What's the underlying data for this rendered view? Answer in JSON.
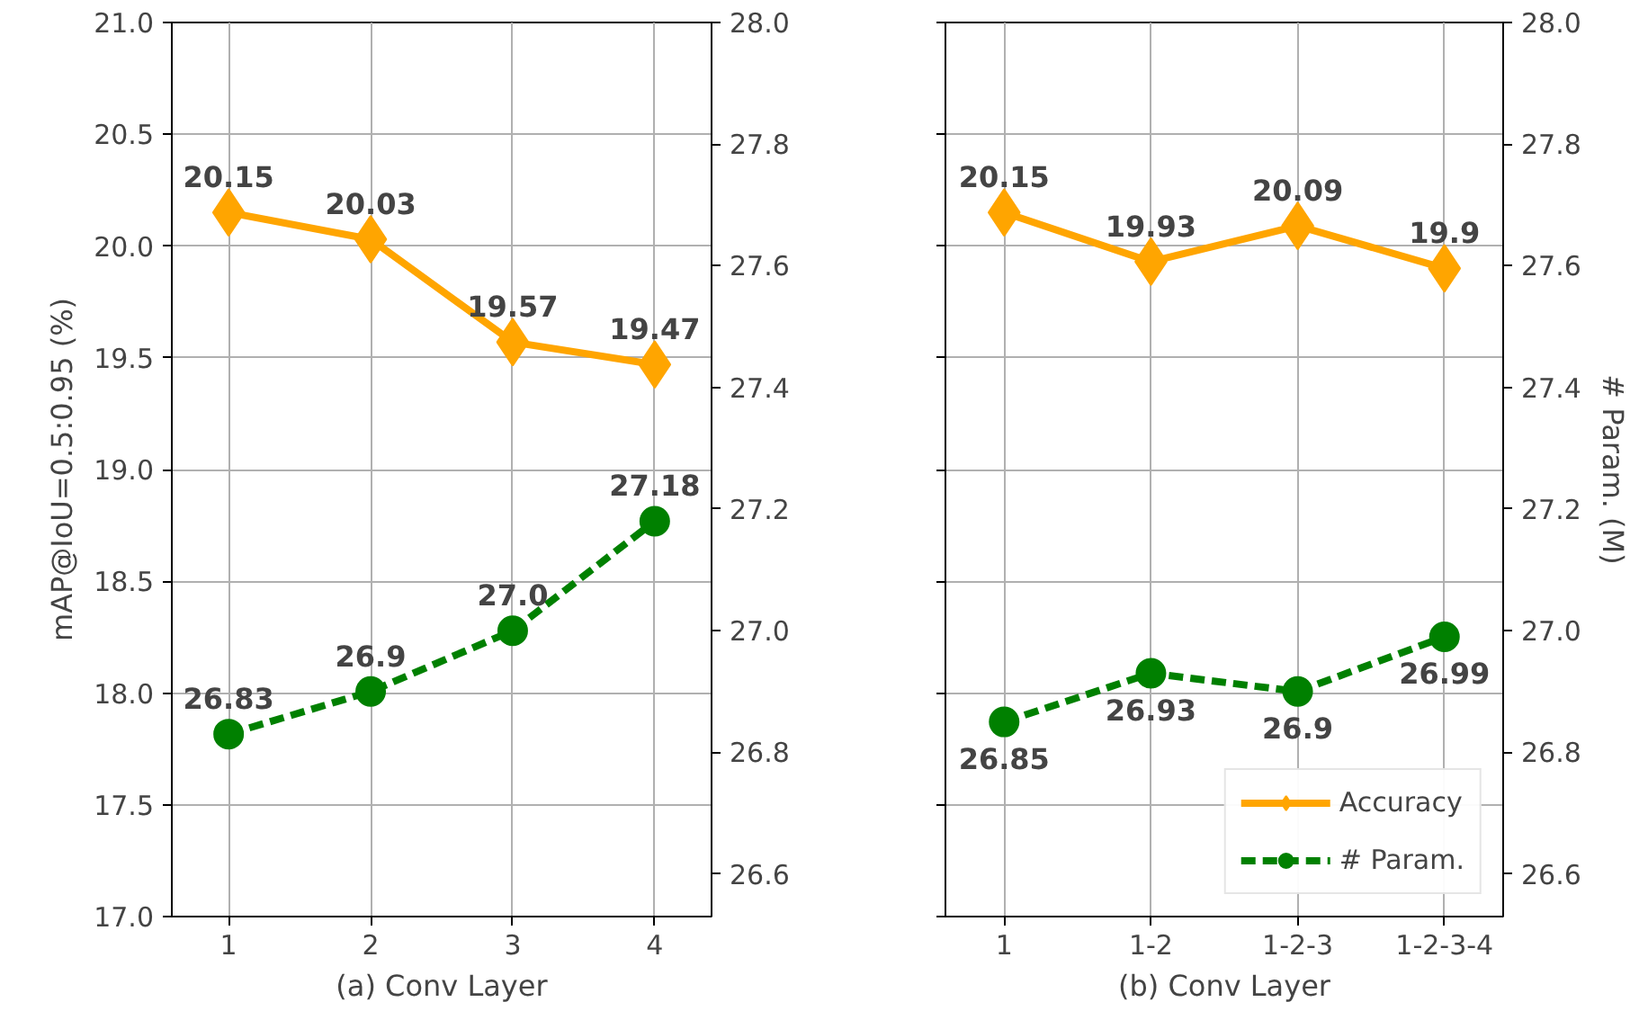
{
  "chart_data": [
    {
      "type": "line",
      "xlabel": "(a) Conv Layer",
      "ylabel": "mAP@IoU=0.5:0.95 (%)",
      "categories": [
        "1",
        "2",
        "3",
        "4"
      ],
      "series": [
        {
          "color": "#ffa500",
          "marker": "diamond",
          "line_style": "solid",
          "values": [
            20.15,
            20.03,
            19.57,
            19.47
          ],
          "value_labels": [
            "20.15",
            "20.03",
            "19.57",
            "19.47"
          ]
        },
        {
          "color": "#008000",
          "marker": "circle",
          "line_style": "dashed",
          "axis": "y2",
          "values": [
            26.83,
            26.9,
            27.0,
            27.18
          ],
          "value_labels": [
            "26.83",
            "26.9",
            "27.0",
            "27.18"
          ]
        }
      ],
      "ylim": [
        17.0,
        21.0
      ],
      "yticks": [
        "17.0",
        "17.5",
        "18.0",
        "18.5",
        "19.0",
        "19.5",
        "20.0",
        "20.5",
        "21.0"
      ],
      "y2lim": [
        26.53,
        28.0
      ],
      "y2ticks": [
        "26.6",
        "26.8",
        "27.0",
        "27.2",
        "27.4",
        "27.6",
        "27.8",
        "28.0"
      ],
      "grid": true,
      "legend": false
    },
    {
      "type": "line",
      "xlabel": "(b) Conv Layer",
      "y2label": "# Param. (M)",
      "categories": [
        "1",
        "1-2",
        "1-2-3",
        "1-2-3-4"
      ],
      "series": [
        {
          "name": "Accuracy",
          "color": "#ffa500",
          "marker": "diamond",
          "line_style": "solid",
          "values": [
            20.15,
            19.93,
            20.09,
            19.9
          ],
          "value_labels": [
            "20.15",
            "19.93",
            "20.09",
            "19.9"
          ]
        },
        {
          "name": "# Param.",
          "color": "#008000",
          "marker": "circle",
          "line_style": "dashed",
          "axis": "y2",
          "values": [
            26.85,
            26.93,
            26.9,
            26.99
          ],
          "value_labels": [
            "26.85",
            "26.93",
            "26.9",
            "26.99"
          ]
        }
      ],
      "ylim": [
        17.0,
        21.0
      ],
      "yticks": [
        {
          "value": 17.0,
          "label": null
        },
        {
          "value": 17.5,
          "label": null
        },
        {
          "value": 18.0,
          "label": null
        },
        {
          "value": 18.5,
          "label": null
        },
        {
          "value": 19.0,
          "label": null
        },
        {
          "value": 19.5,
          "label": null
        },
        {
          "value": 20.0,
          "label": null
        },
        {
          "value": 20.5,
          "label": null
        },
        {
          "value": 21.0,
          "label": null
        }
      ],
      "y2lim": [
        26.53,
        28.0
      ],
      "y2ticks": [
        "26.6",
        "26.8",
        "27.0",
        "27.2",
        "27.4",
        "27.6",
        "27.8",
        "28.0"
      ],
      "tick_labels": [
        "x",
        "y2"
      ],
      "grid": true,
      "legend": "bottom right"
    }
  ]
}
